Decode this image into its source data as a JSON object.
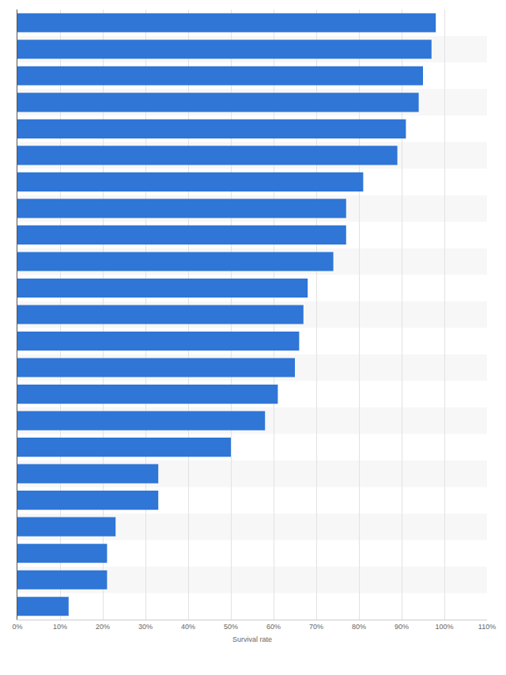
{
  "chart_data": {
    "type": "bar",
    "orientation": "horizontal",
    "xlabel": "Survival rate",
    "categories": [
      null,
      null,
      null,
      null,
      null,
      null,
      null,
      null,
      null,
      null,
      null,
      null,
      null,
      null,
      null,
      null,
      null,
      null,
      null,
      null,
      null,
      null,
      null
    ],
    "values": [
      98,
      97,
      95,
      94,
      91,
      89,
      81,
      77,
      77,
      74,
      68,
      67,
      66,
      65,
      61,
      58,
      50,
      33,
      33,
      23,
      21,
      21,
      12
    ],
    "color": "#2f76d6",
    "xlim": [
      0,
      110
    ],
    "xticks": [
      {
        "value": 0,
        "label": "0%"
      },
      {
        "value": 10,
        "label": "10%"
      },
      {
        "value": 20,
        "label": "20%"
      },
      {
        "value": 30,
        "label": "30%"
      },
      {
        "value": 40,
        "label": "40%"
      },
      {
        "value": 50,
        "label": "50%"
      },
      {
        "value": 60,
        "label": "60%"
      },
      {
        "value": 70,
        "label": "70%"
      },
      {
        "value": 80,
        "label": "80%"
      },
      {
        "value": 90,
        "label": "90%"
      },
      {
        "value": 100,
        "label": "100%"
      },
      {
        "value": 110,
        "label": "110%"
      }
    ],
    "grid": true,
    "tick_labels": "x"
  }
}
